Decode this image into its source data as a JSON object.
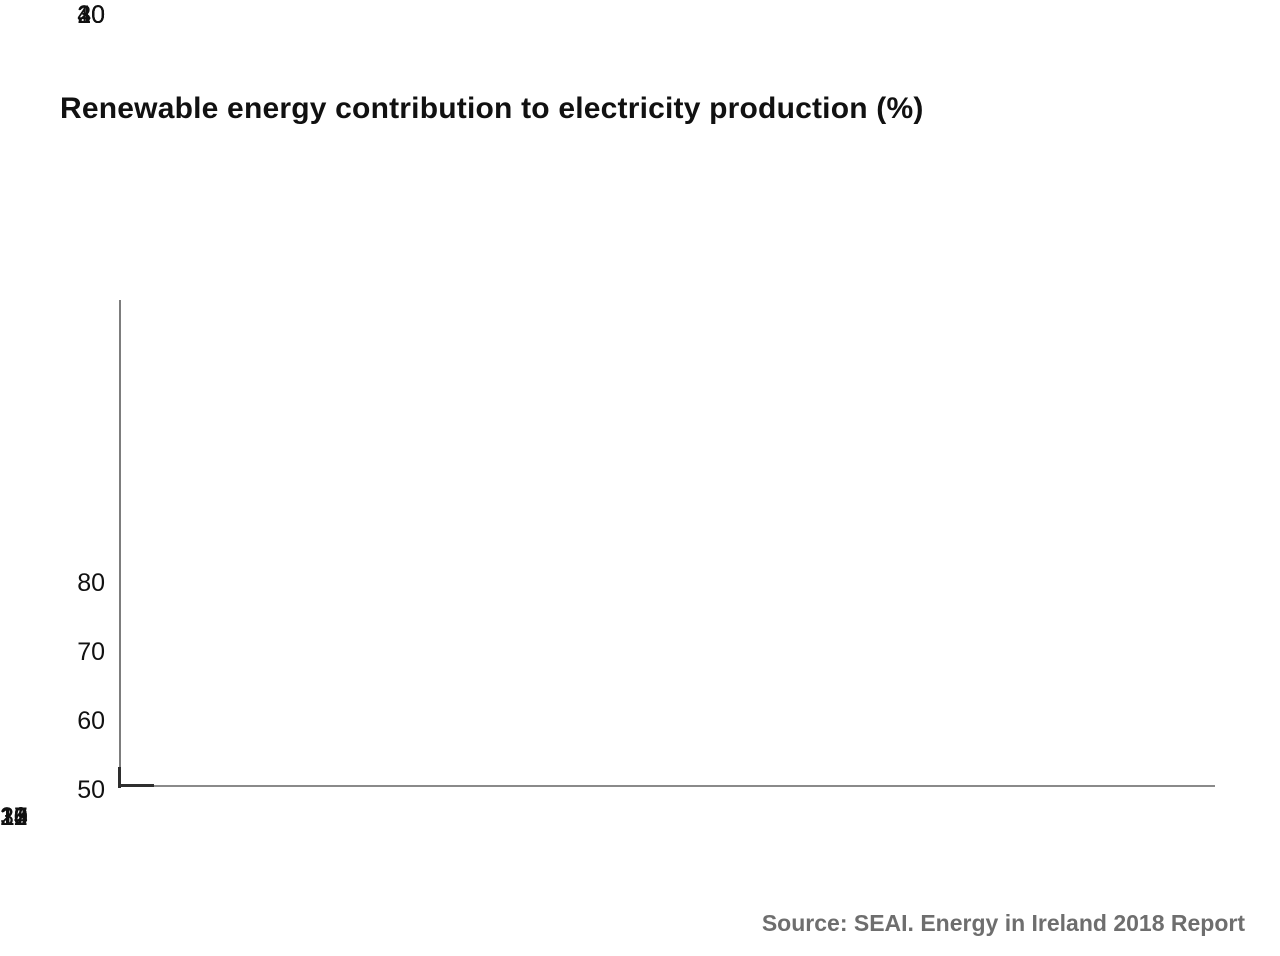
{
  "page": {
    "title": "Renewable energy contribution to electricity production (%)",
    "source_note": "Source: SEAI. Energy in Ireland 2018 Report"
  },
  "chart_data": {
    "type": "line",
    "title": "Renewable energy contribution to electricity production (%)",
    "xlabel": "",
    "ylabel": "",
    "x_tick_labels": [
      "2010",
      "2011",
      "2012",
      "2013",
      "2014",
      "2015",
      "2016",
      "2017",
      "2020",
      "2030"
    ],
    "x_tick_offset_units": [
      0,
      1,
      2,
      3,
      4,
      5,
      6,
      7,
      9,
      11
    ],
    "y_tick_labels": [
      "80",
      "70",
      "60",
      "50",
      "40",
      "30",
      "20",
      "10"
    ],
    "ylim": [
      10,
      80
    ],
    "grid": false,
    "legend": "none",
    "series": [],
    "plot_state": "axes only, no data series plotted yet; short dark line-start segment at bottom-left corner of axes",
    "source": "Source: SEAI. Energy in Ireland 2018 Report",
    "colors": {
      "background": "#ffffff",
      "title_text": "#111111",
      "axis_line": "#7d7d7d",
      "line_start_segment": "#2e2e2e",
      "tick_label_text": "#111111",
      "source_text": "#6e6e6e"
    }
  }
}
